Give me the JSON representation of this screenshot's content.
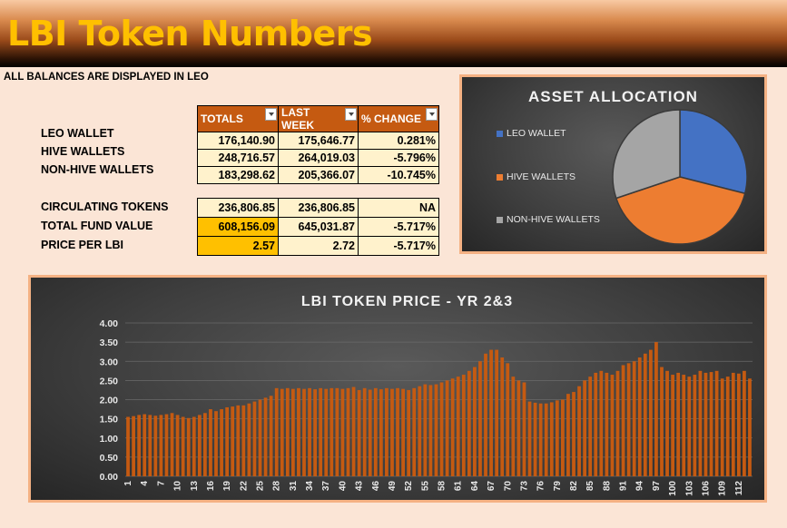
{
  "header": {
    "title": "LBI Token Numbers"
  },
  "note": "ALL BALANCES ARE DISPLAYED IN LEO",
  "balances": {
    "columns": [
      "TOTALS",
      "LAST WEEK",
      "% CHANGE"
    ],
    "rows": [
      {
        "label": "LEO WALLET",
        "totals": "176,140.90",
        "last_week": "175,646.77",
        "change": "0.281%"
      },
      {
        "label": "HIVE WALLETS",
        "totals": "248,716.57",
        "last_week": "264,019.03",
        "change": "-5.796%"
      },
      {
        "label": "NON-HIVE WALLETS",
        "totals": "183,298.62",
        "last_week": "205,366.07",
        "change": "-10.745%"
      }
    ]
  },
  "summary": {
    "rows": [
      {
        "label": "CIRCULATING TOKENS",
        "totals": "236,806.85",
        "last_week": "236,806.85",
        "change": "NA"
      },
      {
        "label": "TOTAL FUND VALUE",
        "totals": "608,156.09",
        "last_week": "645,031.87",
        "change": "-5.717%"
      },
      {
        "label": "PRICE PER LBI",
        "totals": "2.57",
        "last_week": "2.72",
        "change": "-5.717%"
      }
    ]
  },
  "colors": {
    "gold": "#ffc000",
    "header_orange": "#c55a11",
    "cell": "#fff2cc",
    "bar": "#c55a11"
  },
  "chart_data": [
    {
      "type": "pie",
      "title": "ASSET ALLOCATION",
      "legend_position": "left",
      "slices": [
        {
          "name": "LEO WALLET",
          "value": 176140.9,
          "color": "#4472c4"
        },
        {
          "name": "HIVE WALLETS",
          "value": 248716.57,
          "color": "#ed7d31"
        },
        {
          "name": "NON-HIVE WALLETS",
          "value": 183298.62,
          "color": "#a5a5a5"
        }
      ]
    },
    {
      "type": "bar",
      "title": "LBI TOKEN  PRICE  - YR 2&3",
      "ylim": [
        0,
        4
      ],
      "yticks": [
        "0.00",
        "0.50",
        "1.00",
        "1.50",
        "2.00",
        "2.50",
        "3.00",
        "3.50",
        "4.00"
      ],
      "x_start": 1,
      "x_tick_labels": [
        "1",
        "4",
        "7",
        "10",
        "13",
        "16",
        "19",
        "22",
        "25",
        "28",
        "31",
        "34",
        "37",
        "40",
        "43",
        "46",
        "49",
        "52",
        "55",
        "58",
        "61",
        "64",
        "67",
        "70",
        "73",
        "76",
        "79",
        "82",
        "85",
        "88",
        "91",
        "94",
        "97",
        "100",
        "103",
        "106",
        "109",
        "112"
      ],
      "grid": true,
      "values": [
        1.55,
        1.57,
        1.6,
        1.62,
        1.6,
        1.58,
        1.6,
        1.62,
        1.65,
        1.6,
        1.55,
        1.52,
        1.55,
        1.6,
        1.65,
        1.75,
        1.7,
        1.75,
        1.8,
        1.82,
        1.85,
        1.85,
        1.9,
        1.95,
        2.0,
        2.05,
        2.1,
        2.3,
        2.28,
        2.3,
        2.28,
        2.3,
        2.28,
        2.3,
        2.27,
        2.3,
        2.28,
        2.3,
        2.3,
        2.28,
        2.3,
        2.33,
        2.25,
        2.3,
        2.26,
        2.3,
        2.27,
        2.3,
        2.28,
        2.3,
        2.28,
        2.25,
        2.3,
        2.35,
        2.4,
        2.38,
        2.4,
        2.45,
        2.5,
        2.55,
        2.6,
        2.65,
        2.75,
        2.85,
        3.0,
        3.2,
        3.3,
        3.3,
        3.1,
        2.95,
        2.6,
        2.5,
        2.45,
        1.95,
        1.92,
        1.9,
        1.9,
        1.93,
        1.98,
        2.0,
        2.15,
        2.2,
        2.35,
        2.5,
        2.6,
        2.7,
        2.75,
        2.7,
        2.65,
        2.75,
        2.9,
        2.95,
        3.0,
        3.1,
        3.2,
        3.3,
        3.5,
        2.85,
        2.75,
        2.65,
        2.7,
        2.65,
        2.6,
        2.65,
        2.75,
        2.7,
        2.72,
        2.75,
        2.55,
        2.6,
        2.7,
        2.68,
        2.75,
        2.55
      ]
    }
  ]
}
